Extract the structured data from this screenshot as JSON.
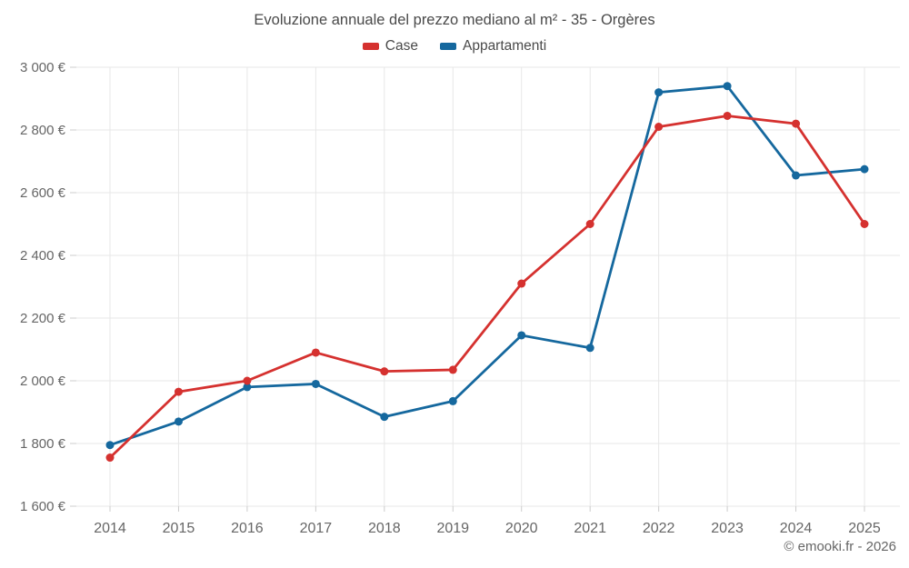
{
  "chart_data": {
    "type": "line",
    "title": "Evoluzione annuale del prezzo mediano al m² - 35 - Orgères",
    "categories": [
      "2014",
      "2015",
      "2016",
      "2017",
      "2018",
      "2019",
      "2020",
      "2021",
      "2022",
      "2023",
      "2024",
      "2025"
    ],
    "series": [
      {
        "name": "Case",
        "color": "#d5312f",
        "values": [
          1755,
          1965,
          2000,
          2090,
          2030,
          2035,
          2310,
          2500,
          2810,
          2845,
          2820,
          2500
        ]
      },
      {
        "name": "Appartamenti",
        "color": "#15689e",
        "values": [
          1795,
          1870,
          1980,
          1990,
          1885,
          1935,
          2145,
          2105,
          2920,
          2940,
          2655,
          2675
        ]
      }
    ],
    "xlabel": "",
    "ylabel": "",
    "ylim": [
      1600,
      3000
    ],
    "y_ticks": [
      1600,
      1800,
      2000,
      2200,
      2400,
      2600,
      2800,
      3000
    ],
    "y_tick_labels": [
      "1 600 €",
      "1 800 €",
      "2 000 €",
      "2 200 €",
      "2 400 €",
      "2 600 €",
      "2 800 €",
      "3 000 €"
    ],
    "grid": true,
    "legend_position": "top"
  },
  "footer": {
    "credit": "© emooki.fr - 2026"
  }
}
